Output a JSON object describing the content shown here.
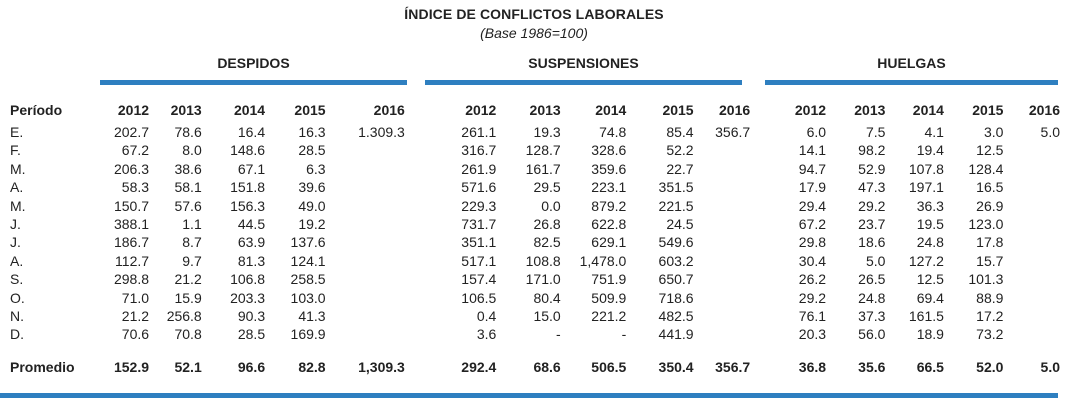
{
  "title": "ÍNDICE DE CONFLICTOS LABORALES",
  "subtitle": "(Base  1986=100)",
  "groups": [
    "DESPIDOS",
    "SUSPENSIONES",
    "HUELGAS"
  ],
  "period_label": "Período",
  "years": [
    "2012",
    "2013",
    "2014",
    "2015",
    "2016"
  ],
  "rows": [
    {
      "label": "E.",
      "values": [
        "202.7",
        "78.6",
        "16.4",
        "16.3",
        "1.309.3",
        "261.1",
        "19.3",
        "74.8",
        "85.4",
        "356.7",
        "6.0",
        "7.5",
        "4.1",
        "3.0",
        "5.0"
      ]
    },
    {
      "label": "F.",
      "values": [
        "67.2",
        "8.0",
        "148.6",
        "28.5",
        "",
        "316.7",
        "128.7",
        "328.6",
        "52.2",
        "",
        "14.1",
        "98.2",
        "19.4",
        "12.5",
        ""
      ]
    },
    {
      "label": "M.",
      "values": [
        "206.3",
        "38.6",
        "67.1",
        "6.3",
        "",
        "261.9",
        "161.7",
        "359.6",
        "22.7",
        "",
        "94.7",
        "52.9",
        "107.8",
        "128.4",
        ""
      ]
    },
    {
      "label": "A.",
      "values": [
        "58.3",
        "58.1",
        "151.8",
        "39.6",
        "",
        "571.6",
        "29.5",
        "223.1",
        "351.5",
        "",
        "17.9",
        "47.3",
        "197.1",
        "16.5",
        ""
      ]
    },
    {
      "label": "M.",
      "values": [
        "150.7",
        "57.6",
        "156.3",
        "49.0",
        "",
        "229.3",
        "0.0",
        "879.2",
        "221.5",
        "",
        "29.4",
        "29.2",
        "36.3",
        "26.9",
        ""
      ]
    },
    {
      "label": "J.",
      "values": [
        "388.1",
        "1.1",
        "44.5",
        "19.2",
        "",
        "731.7",
        "26.8",
        "622.8",
        "24.5",
        "",
        "67.2",
        "23.7",
        "19.5",
        "123.0",
        ""
      ]
    },
    {
      "label": "J.",
      "values": [
        "186.7",
        "8.7",
        "63.9",
        "137.6",
        "",
        "351.1",
        "82.5",
        "629.1",
        "549.6",
        "",
        "29.8",
        "18.6",
        "24.8",
        "17.8",
        ""
      ]
    },
    {
      "label": "A.",
      "values": [
        "112.7",
        "9.7",
        "81.3",
        "124.1",
        "",
        "517.1",
        "108.8",
        "1,478.0",
        "603.2",
        "",
        "30.4",
        "5.0",
        "127.2",
        "15.7",
        ""
      ]
    },
    {
      "label": "S.",
      "values": [
        "298.8",
        "21.2",
        "106.8",
        "258.5",
        "",
        "157.4",
        "171.0",
        "751.9",
        "650.7",
        "",
        "26.2",
        "26.5",
        "12.5",
        "101.3",
        ""
      ]
    },
    {
      "label": "O.",
      "values": [
        "71.0",
        "15.9",
        "203.3",
        "103.0",
        "",
        "106.5",
        "80.4",
        "509.9",
        "718.6",
        "",
        "29.2",
        "24.8",
        "69.4",
        "88.9",
        ""
      ]
    },
    {
      "label": "N.",
      "values": [
        "21.2",
        "256.8",
        "90.3",
        "41.3",
        "",
        "0.4",
        "15.0",
        "221.2",
        "482.5",
        "",
        "76.1",
        "37.3",
        "161.5",
        "17.2",
        ""
      ]
    },
    {
      "label": "D.",
      "values": [
        "70.6",
        "70.8",
        "28.5",
        "169.9",
        "",
        "3.6",
        "-",
        "-",
        "441.9",
        "",
        "20.3",
        "56.0",
        "18.9",
        "73.2",
        ""
      ]
    }
  ],
  "average": {
    "label": "Promedio",
    "values": [
      "152.9",
      "52.1",
      "96.6",
      "82.8",
      "1,309.3",
      "292.4",
      "68.6",
      "506.5",
      "350.4",
      "356.7",
      "36.8",
      "35.6",
      "66.5",
      "52.0",
      "5.0"
    ]
  },
  "colors": {
    "accent": "#2e7fc0"
  }
}
